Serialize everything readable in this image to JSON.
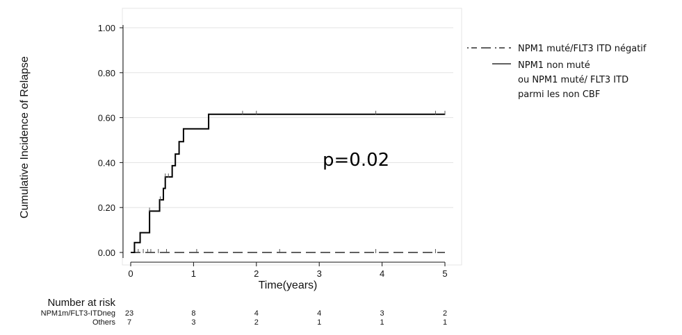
{
  "chart_data": {
    "type": "line",
    "title": "",
    "xlabel": "Time(years)",
    "ylabel": "Cumulative Incidence of Relapse",
    "xlim": [
      0,
      5
    ],
    "ylim": [
      0,
      1
    ],
    "x_ticks": [
      0,
      1,
      2,
      3,
      4,
      5
    ],
    "x_tick_labels": [
      "0",
      "1",
      "2",
      "3",
      "4",
      "5"
    ],
    "y_ticks": [
      0,
      0.2,
      0.4,
      0.6,
      0.8,
      1.0
    ],
    "y_tick_labels": [
      "0.00",
      "0.20",
      "0.40",
      "0.60",
      "0.80",
      "1.00"
    ],
    "grid": "horizontal",
    "legend_position": "right",
    "annotation": "p=0.02",
    "series": [
      {
        "name": "NPM1 muté/FLT3 ITD négatif",
        "style": "dashed",
        "color": "#000000",
        "step_points": [
          [
            0.0,
            0.0
          ],
          [
            5.0,
            0.0
          ]
        ],
        "censor_times": [
          0.12,
          0.2,
          0.27,
          0.32,
          0.44,
          0.57,
          1.05,
          2.37,
          3.9,
          4.85
        ]
      },
      {
        "name": "NPM1 non muté\nou NPM1 muté/ FLT3 ITD\nparmi les non CBF",
        "legend_lines": [
          "NPM1 non muté",
          "ou NPM1 muté/ FLT3 ITD",
          "parmi les non CBF"
        ],
        "style": "solid",
        "color": "#000000",
        "step_points": [
          [
            0.0,
            0.0
          ],
          [
            0.06,
            0.044
          ],
          [
            0.15,
            0.088
          ],
          [
            0.3,
            0.184
          ],
          [
            0.46,
            0.234
          ],
          [
            0.52,
            0.285
          ],
          [
            0.55,
            0.336
          ],
          [
            0.66,
            0.386
          ],
          [
            0.71,
            0.438
          ],
          [
            0.77,
            0.493
          ],
          [
            0.84,
            0.55
          ],
          [
            1.24,
            0.615
          ],
          [
            5.0,
            0.615
          ]
        ],
        "censor_times": [
          0.3,
          0.47,
          0.55,
          0.6,
          1.78,
          2.0,
          3.9,
          4.85,
          5.0
        ]
      }
    ],
    "risk_table": {
      "header": "Number at risk",
      "times": [
        0,
        1,
        2,
        3,
        4,
        5
      ],
      "rows": [
        {
          "label": "NPM1m/FLT3-ITDneg",
          "counts": [
            "23",
            "8",
            "4",
            "4",
            "3",
            "2"
          ]
        },
        {
          "label": "Others",
          "counts": [
            "7",
            "3",
            "2",
            "1",
            "1",
            "1"
          ]
        }
      ]
    }
  }
}
